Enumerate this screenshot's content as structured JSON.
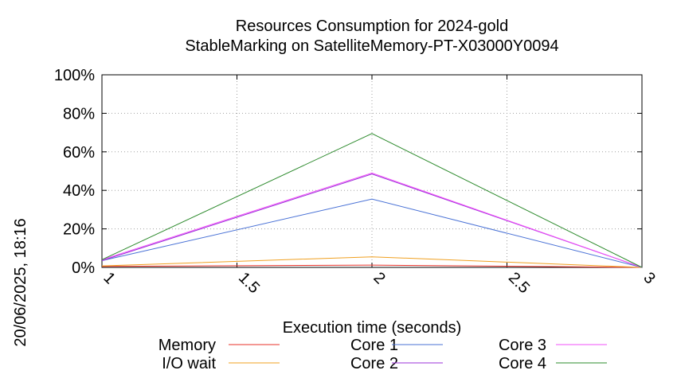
{
  "timestamp": "20/06/2025, 18:16",
  "chart_data": {
    "type": "line",
    "title": "Resources Consumption for 2024-gold",
    "subtitle": "StableMarking on SatelliteMemory-PT-X03000Y0094",
    "xlabel": "Execution time (seconds)",
    "ylabel": "",
    "xlim": [
      1,
      3
    ],
    "ylim": [
      0,
      100
    ],
    "grid": true,
    "x_ticks": [
      "1",
      "1.5",
      "2",
      "2.5",
      "3"
    ],
    "y_ticks": [
      "0%",
      "20%",
      "40%",
      "60%",
      "80%",
      "100%"
    ],
    "legend_position": "bottom",
    "series": [
      {
        "name": "Memory",
        "color": "#e8322a",
        "x": [
          1,
          2,
          3
        ],
        "y": [
          0.5,
          1.2,
          0
        ]
      },
      {
        "name": "I/O wait",
        "color": "#f0a020",
        "x": [
          1,
          2,
          3
        ],
        "y": [
          0.8,
          5.5,
          0
        ]
      },
      {
        "name": "Core 1",
        "color": "#4a72d6",
        "x": [
          1,
          2,
          3
        ],
        "y": [
          3.5,
          35.5,
          0
        ]
      },
      {
        "name": "Core 2",
        "color": "#9b30d8",
        "x": [
          1,
          2,
          3
        ],
        "y": [
          3.5,
          48.5,
          0
        ]
      },
      {
        "name": "Core 3",
        "color": "#f050f8",
        "x": [
          1,
          2,
          3
        ],
        "y": [
          4.0,
          49.0,
          0
        ]
      },
      {
        "name": "Core 4",
        "color": "#2e8b2e",
        "x": [
          1,
          2,
          3
        ],
        "y": [
          4.0,
          69.5,
          0
        ]
      }
    ]
  }
}
